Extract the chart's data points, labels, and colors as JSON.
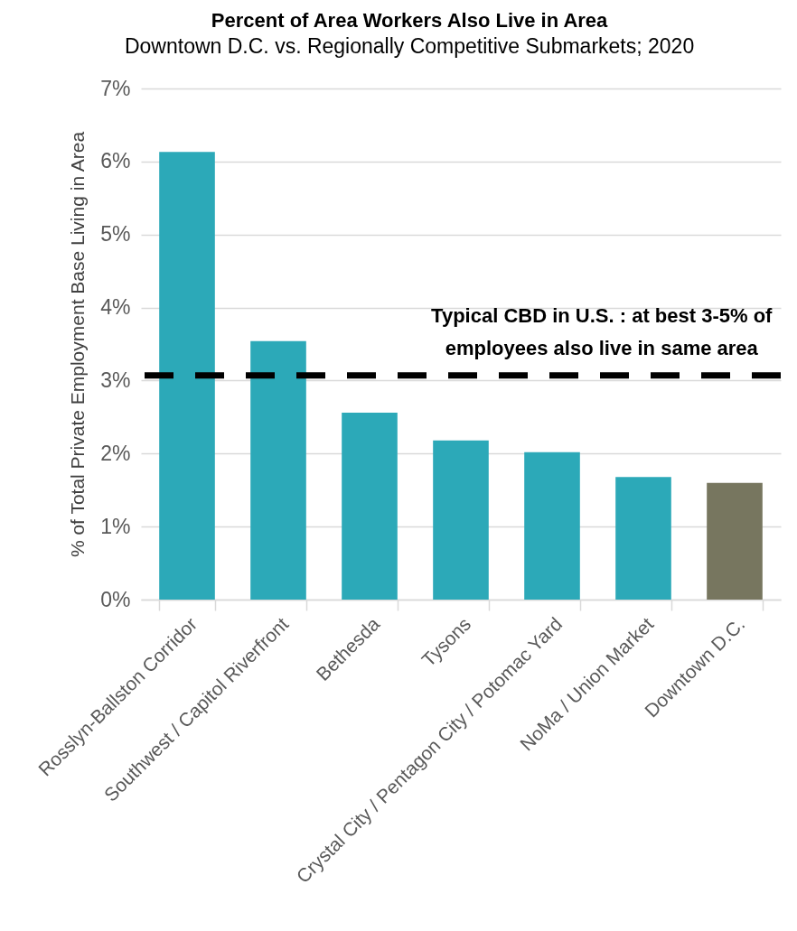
{
  "chart_data": {
    "type": "bar",
    "title": "Percent of Area Workers Also Live in Area",
    "subtitle": "Downtown D.C. vs. Regionally Competitive Submarkets; 2020",
    "ylabel": "% of Total Private Employment Base Living in Area",
    "categories": [
      "Rosslyn-Ballston Corridor",
      "Southwest / Capitol Riverfront",
      "Bethesda",
      "Tysons",
      "Crystal City / Pentagon City / Potomac Yard",
      "NoMa / Union Market",
      "Downtown D.C."
    ],
    "values": [
      6.13,
      3.54,
      2.56,
      2.18,
      2.02,
      1.68,
      1.6
    ],
    "colors": [
      "#2ca9b8",
      "#2ca9b8",
      "#2ca9b8",
      "#2ca9b8",
      "#2ca9b8",
      "#2ca9b8",
      "#77765f"
    ],
    "ylim": [
      0,
      7
    ],
    "yticks": [
      {
        "value": 0,
        "label": "0%"
      },
      {
        "value": 1,
        "label": "1%"
      },
      {
        "value": 2,
        "label": "2%"
      },
      {
        "value": 3,
        "label": "3%"
      },
      {
        "value": 4,
        "label": "4%"
      },
      {
        "value": 5,
        "label": "5%"
      },
      {
        "value": 6,
        "label": "6%"
      },
      {
        "value": 7,
        "label": "7%"
      }
    ],
    "grid": "y",
    "ref_lines": [
      {
        "axis": "y",
        "value": 3.07,
        "label": "Typical CBD in U.S. : at best 3-5% of\nemployees also live in same area",
        "color": "#000000",
        "line_style": "dashed"
      }
    ]
  }
}
